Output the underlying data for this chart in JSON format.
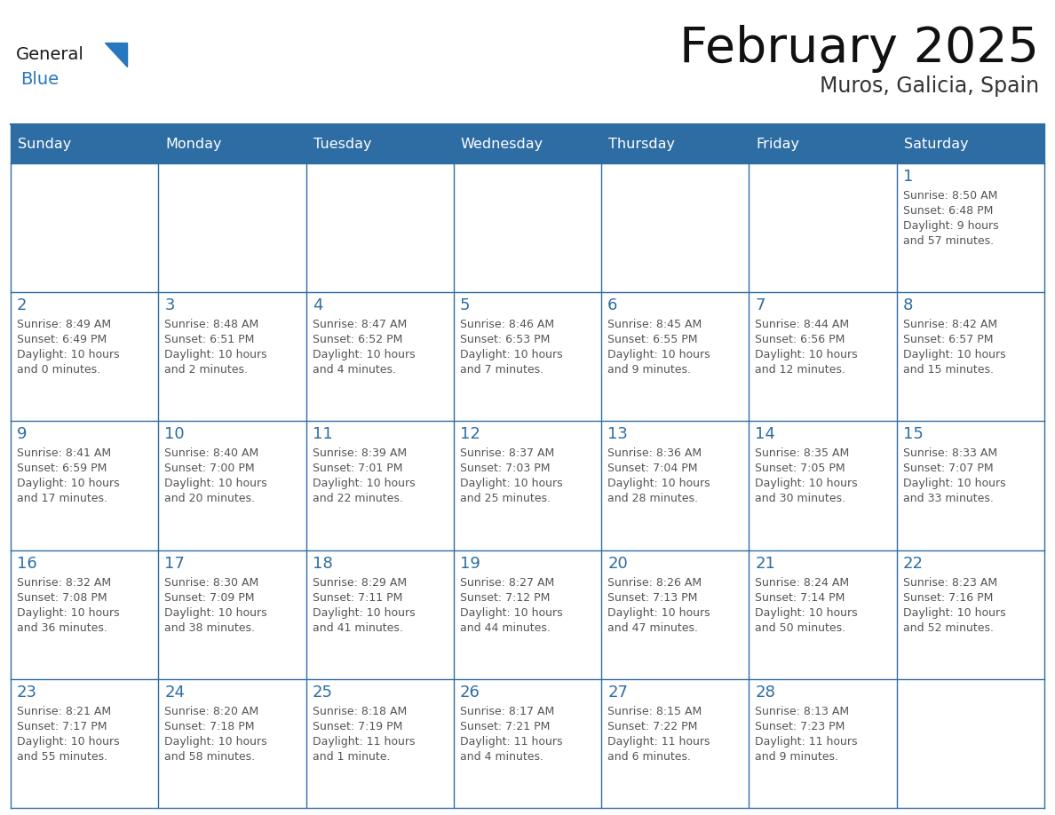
{
  "title": "February 2025",
  "subtitle": "Muros, Galicia, Spain",
  "days_of_week": [
    "Sunday",
    "Monday",
    "Tuesday",
    "Wednesday",
    "Thursday",
    "Friday",
    "Saturday"
  ],
  "header_bg_color": "#2E6DA4",
  "header_text_color": "#FFFFFF",
  "cell_bg_color": "#FFFFFF",
  "border_color": "#2E6DA4",
  "day_num_color": "#2E6DA4",
  "info_text_color": "#555555",
  "title_color": "#111111",
  "subtitle_color": "#333333",
  "logo_general_color": "#1a1a1a",
  "logo_blue_color": "#2777C0",
  "fig_bg_color": "#FFFFFF",
  "calendar": [
    [
      null,
      null,
      null,
      null,
      null,
      null,
      {
        "day": "1",
        "sunrise": "8:50 AM",
        "sunset": "6:48 PM",
        "dl1": "Daylight: 9 hours",
        "dl2": "and 57 minutes."
      }
    ],
    [
      {
        "day": "2",
        "sunrise": "8:49 AM",
        "sunset": "6:49 PM",
        "dl1": "Daylight: 10 hours",
        "dl2": "and 0 minutes."
      },
      {
        "day": "3",
        "sunrise": "8:48 AM",
        "sunset": "6:51 PM",
        "dl1": "Daylight: 10 hours",
        "dl2": "and 2 minutes."
      },
      {
        "day": "4",
        "sunrise": "8:47 AM",
        "sunset": "6:52 PM",
        "dl1": "Daylight: 10 hours",
        "dl2": "and 4 minutes."
      },
      {
        "day": "5",
        "sunrise": "8:46 AM",
        "sunset": "6:53 PM",
        "dl1": "Daylight: 10 hours",
        "dl2": "and 7 minutes."
      },
      {
        "day": "6",
        "sunrise": "8:45 AM",
        "sunset": "6:55 PM",
        "dl1": "Daylight: 10 hours",
        "dl2": "and 9 minutes."
      },
      {
        "day": "7",
        "sunrise": "8:44 AM",
        "sunset": "6:56 PM",
        "dl1": "Daylight: 10 hours",
        "dl2": "and 12 minutes."
      },
      {
        "day": "8",
        "sunrise": "8:42 AM",
        "sunset": "6:57 PM",
        "dl1": "Daylight: 10 hours",
        "dl2": "and 15 minutes."
      }
    ],
    [
      {
        "day": "9",
        "sunrise": "8:41 AM",
        "sunset": "6:59 PM",
        "dl1": "Daylight: 10 hours",
        "dl2": "and 17 minutes."
      },
      {
        "day": "10",
        "sunrise": "8:40 AM",
        "sunset": "7:00 PM",
        "dl1": "Daylight: 10 hours",
        "dl2": "and 20 minutes."
      },
      {
        "day": "11",
        "sunrise": "8:39 AM",
        "sunset": "7:01 PM",
        "dl1": "Daylight: 10 hours",
        "dl2": "and 22 minutes."
      },
      {
        "day": "12",
        "sunrise": "8:37 AM",
        "sunset": "7:03 PM",
        "dl1": "Daylight: 10 hours",
        "dl2": "and 25 minutes."
      },
      {
        "day": "13",
        "sunrise": "8:36 AM",
        "sunset": "7:04 PM",
        "dl1": "Daylight: 10 hours",
        "dl2": "and 28 minutes."
      },
      {
        "day": "14",
        "sunrise": "8:35 AM",
        "sunset": "7:05 PM",
        "dl1": "Daylight: 10 hours",
        "dl2": "and 30 minutes."
      },
      {
        "day": "15",
        "sunrise": "8:33 AM",
        "sunset": "7:07 PM",
        "dl1": "Daylight: 10 hours",
        "dl2": "and 33 minutes."
      }
    ],
    [
      {
        "day": "16",
        "sunrise": "8:32 AM",
        "sunset": "7:08 PM",
        "dl1": "Daylight: 10 hours",
        "dl2": "and 36 minutes."
      },
      {
        "day": "17",
        "sunrise": "8:30 AM",
        "sunset": "7:09 PM",
        "dl1": "Daylight: 10 hours",
        "dl2": "and 38 minutes."
      },
      {
        "day": "18",
        "sunrise": "8:29 AM",
        "sunset": "7:11 PM",
        "dl1": "Daylight: 10 hours",
        "dl2": "and 41 minutes."
      },
      {
        "day": "19",
        "sunrise": "8:27 AM",
        "sunset": "7:12 PM",
        "dl1": "Daylight: 10 hours",
        "dl2": "and 44 minutes."
      },
      {
        "day": "20",
        "sunrise": "8:26 AM",
        "sunset": "7:13 PM",
        "dl1": "Daylight: 10 hours",
        "dl2": "and 47 minutes."
      },
      {
        "day": "21",
        "sunrise": "8:24 AM",
        "sunset": "7:14 PM",
        "dl1": "Daylight: 10 hours",
        "dl2": "and 50 minutes."
      },
      {
        "day": "22",
        "sunrise": "8:23 AM",
        "sunset": "7:16 PM",
        "dl1": "Daylight: 10 hours",
        "dl2": "and 52 minutes."
      }
    ],
    [
      {
        "day": "23",
        "sunrise": "8:21 AM",
        "sunset": "7:17 PM",
        "dl1": "Daylight: 10 hours",
        "dl2": "and 55 minutes."
      },
      {
        "day": "24",
        "sunrise": "8:20 AM",
        "sunset": "7:18 PM",
        "dl1": "Daylight: 10 hours",
        "dl2": "and 58 minutes."
      },
      {
        "day": "25",
        "sunrise": "8:18 AM",
        "sunset": "7:19 PM",
        "dl1": "Daylight: 11 hours",
        "dl2": "and 1 minute."
      },
      {
        "day": "26",
        "sunrise": "8:17 AM",
        "sunset": "7:21 PM",
        "dl1": "Daylight: 11 hours",
        "dl2": "and 4 minutes."
      },
      {
        "day": "27",
        "sunrise": "8:15 AM",
        "sunset": "7:22 PM",
        "dl1": "Daylight: 11 hours",
        "dl2": "and 6 minutes."
      },
      {
        "day": "28",
        "sunrise": "8:13 AM",
        "sunset": "7:23 PM",
        "dl1": "Daylight: 11 hours",
        "dl2": "and 9 minutes."
      },
      null
    ]
  ]
}
